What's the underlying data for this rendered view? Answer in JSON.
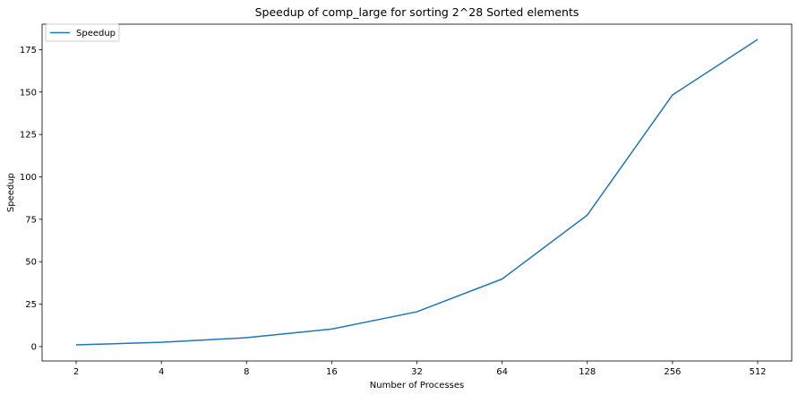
{
  "chart_data": {
    "type": "line",
    "title": "Speedup of comp_large for sorting 2^28 Sorted elements",
    "xlabel": "Number of Processes",
    "ylabel": "Speedup",
    "categories": [
      "2",
      "4",
      "8",
      "16",
      "32",
      "64",
      "128",
      "256",
      "512"
    ],
    "series": [
      {
        "name": "Speedup",
        "color": "#1f77b4",
        "values": [
          1.0,
          2.5,
          5.2,
          10.3,
          20.5,
          39.8,
          77.5,
          148.3,
          181.0
        ]
      }
    ],
    "yticks": [
      0,
      25,
      50,
      75,
      100,
      125,
      150,
      175
    ],
    "ylim": [
      -8.5,
      190
    ],
    "legend": "top-left",
    "grid": false
  }
}
